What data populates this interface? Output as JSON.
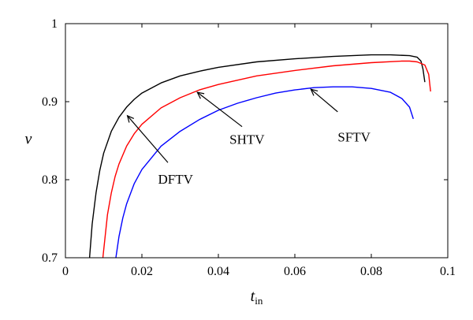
{
  "chart_data": {
    "type": "line",
    "title": "",
    "xlabel": "t",
    "xlabel_sub": "in",
    "ylabel": "ν",
    "xlim": [
      0,
      0.1
    ],
    "ylim": [
      0.7,
      1.0
    ],
    "xticks": [
      0,
      0.02,
      0.04,
      0.06,
      0.08,
      0.1
    ],
    "xtick_labels": [
      "0",
      "0.02",
      "0.04",
      "0.06",
      "0.08",
      "0.1"
    ],
    "yticks": [
      0.7,
      0.8,
      0.9,
      1.0
    ],
    "ytick_labels": [
      "0.7",
      "0.8",
      "0.9",
      "1"
    ],
    "grid": false,
    "series": [
      {
        "color": "#000000",
        "x": [
          0.0063,
          0.007,
          0.008,
          0.009,
          0.01,
          0.012,
          0.014,
          0.016,
          0.018,
          0.02,
          0.025,
          0.03,
          0.035,
          0.04,
          0.05,
          0.06,
          0.07,
          0.08,
          0.085,
          0.09,
          0.092,
          0.093,
          0.0935,
          0.094
        ],
        "y": [
          0.7,
          0.743,
          0.783,
          0.812,
          0.834,
          0.862,
          0.88,
          0.893,
          0.903,
          0.911,
          0.924,
          0.933,
          0.939,
          0.944,
          0.951,
          0.955,
          0.958,
          0.96,
          0.96,
          0.959,
          0.957,
          0.952,
          0.942,
          0.925
        ]
      },
      {
        "color": "#ff0000",
        "x": [
          0.0098,
          0.011,
          0.012,
          0.013,
          0.014,
          0.016,
          0.018,
          0.02,
          0.025,
          0.03,
          0.035,
          0.04,
          0.05,
          0.06,
          0.07,
          0.08,
          0.088,
          0.09,
          0.092,
          0.094,
          0.095,
          0.0955
        ],
        "y": [
          0.7,
          0.755,
          0.783,
          0.804,
          0.82,
          0.843,
          0.859,
          0.871,
          0.892,
          0.905,
          0.915,
          0.922,
          0.933,
          0.94,
          0.946,
          0.95,
          0.952,
          0.952,
          0.951,
          0.947,
          0.935,
          0.913
        ]
      },
      {
        "color": "#0000ff",
        "x": [
          0.0132,
          0.014,
          0.015,
          0.016,
          0.018,
          0.02,
          0.025,
          0.03,
          0.035,
          0.04,
          0.045,
          0.05,
          0.055,
          0.06,
          0.065,
          0.07,
          0.075,
          0.08,
          0.085,
          0.088,
          0.09,
          0.091
        ],
        "y": [
          0.7,
          0.727,
          0.751,
          0.769,
          0.795,
          0.813,
          0.843,
          0.862,
          0.877,
          0.889,
          0.898,
          0.905,
          0.911,
          0.915,
          0.918,
          0.919,
          0.919,
          0.917,
          0.912,
          0.904,
          0.893,
          0.878
        ]
      }
    ],
    "annotations": [
      {
        "label": "DFTV",
        "text_x": 0.0288,
        "text_y": 0.801,
        "tail_x": 0.0268,
        "tail_y": 0.822,
        "head_x": 0.0162,
        "head_y": 0.882
      },
      {
        "label": "SHTV",
        "text_x": 0.0475,
        "text_y": 0.852,
        "tail_x": 0.0462,
        "tail_y": 0.868,
        "head_x": 0.0345,
        "head_y": 0.912
      },
      {
        "label": "SFTV",
        "text_x": 0.0755,
        "text_y": 0.855,
        "tail_x": 0.0712,
        "tail_y": 0.887,
        "head_x": 0.0642,
        "head_y": 0.916
      }
    ]
  }
}
